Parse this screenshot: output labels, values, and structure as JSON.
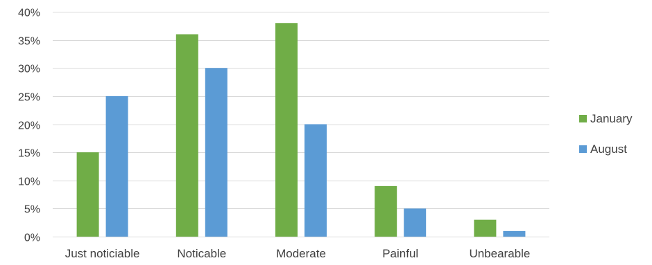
{
  "chart_data": {
    "type": "bar",
    "categories": [
      "Just noticiable",
      "Noticable",
      "Moderate",
      "Painful",
      "Unbearable"
    ],
    "series": [
      {
        "name": "January",
        "values": [
          15,
          36,
          38,
          9,
          3
        ],
        "color": "#70ad47"
      },
      {
        "name": "August",
        "values": [
          25,
          30,
          20,
          5,
          1
        ],
        "color": "#5b9bd5"
      }
    ],
    "ylim": [
      0,
      40
    ],
    "yticks": [
      "0%",
      "5%",
      "10%",
      "15%",
      "20%",
      "25%",
      "30%",
      "35%",
      "40%"
    ],
    "ytick_values": [
      0,
      5,
      10,
      15,
      20,
      25,
      30,
      35,
      40
    ],
    "grid": true,
    "legend_position": "right"
  }
}
